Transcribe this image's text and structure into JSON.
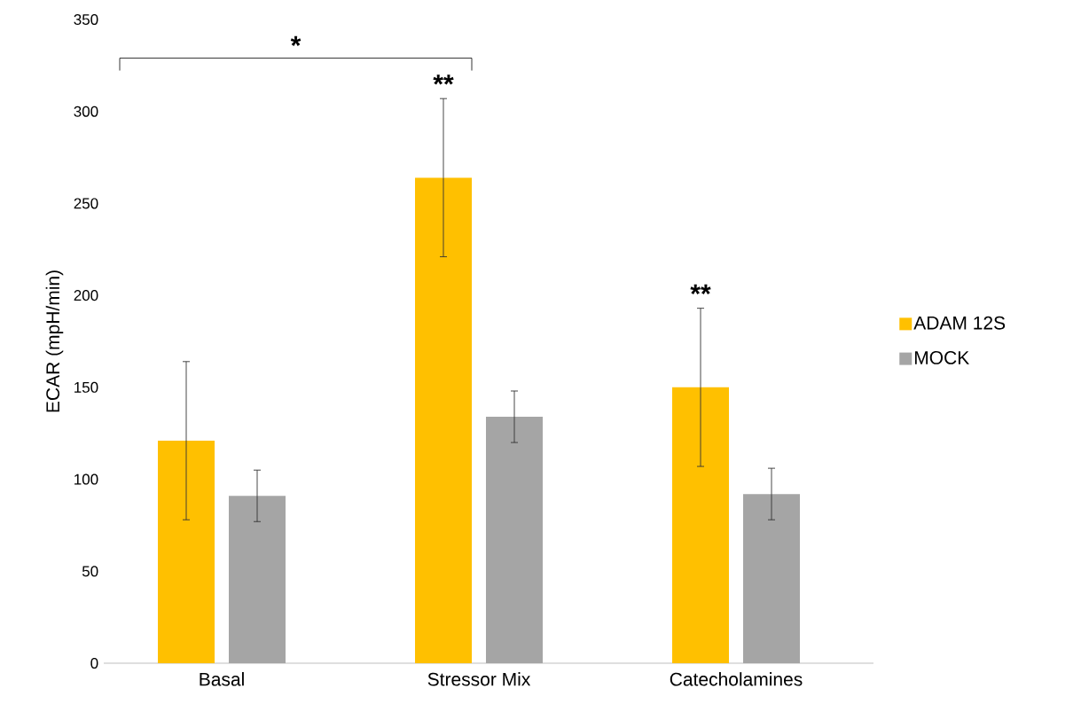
{
  "chart_data": {
    "type": "bar",
    "ylabel": "ECAR (mpH/min)",
    "categories": [
      "Basal",
      "Stressor Mix",
      "Catecholamines"
    ],
    "series": [
      {
        "name": "ADAM 12S",
        "color": "#ffc000",
        "values": [
          121,
          264,
          150
        ],
        "errors": [
          43,
          43,
          43
        ]
      },
      {
        "name": "MOCK",
        "color": "#a5a5a5",
        "values": [
          91,
          134,
          92
        ],
        "errors": [
          14,
          14,
          14
        ]
      }
    ],
    "ylim": [
      0,
      350
    ],
    "yticks": [
      0,
      50,
      100,
      150,
      200,
      250,
      300,
      350
    ],
    "legend": "right",
    "annotations": [
      "*",
      "**",
      "**"
    ]
  }
}
